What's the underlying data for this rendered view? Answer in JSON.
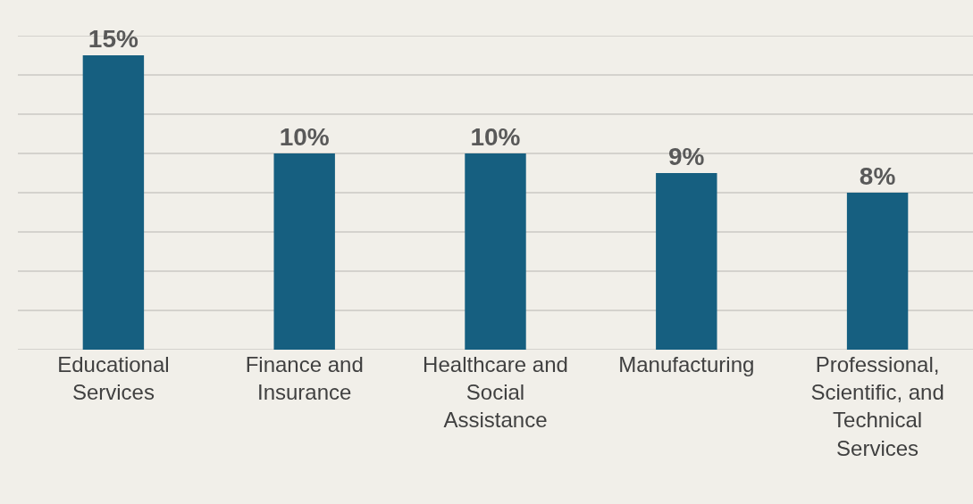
{
  "chart_data": {
    "type": "bar",
    "categories": [
      "Educational Services",
      "Finance and Insurance",
      "Healthcare and Social Assistance",
      "Manufacturing",
      "Professional, Scientific, and Technical Services"
    ],
    "values": [
      15,
      10,
      10,
      9,
      8
    ],
    "value_labels": [
      "15%",
      "10%",
      "10%",
      "9%",
      "8%"
    ],
    "color": "#165f80",
    "ylim": [
      0,
      16
    ],
    "yticks": [
      {
        "value": 0,
        "label": null
      },
      {
        "value": 2,
        "label": null
      },
      {
        "value": 4,
        "label": null
      },
      {
        "value": 6,
        "label": null
      },
      {
        "value": 8,
        "label": null
      },
      {
        "value": 10,
        "label": null
      },
      {
        "value": 12,
        "label": null
      },
      {
        "value": 14,
        "label": null
      },
      {
        "value": 16,
        "label": null
      }
    ],
    "tick_labels": "x",
    "grid": "y"
  }
}
